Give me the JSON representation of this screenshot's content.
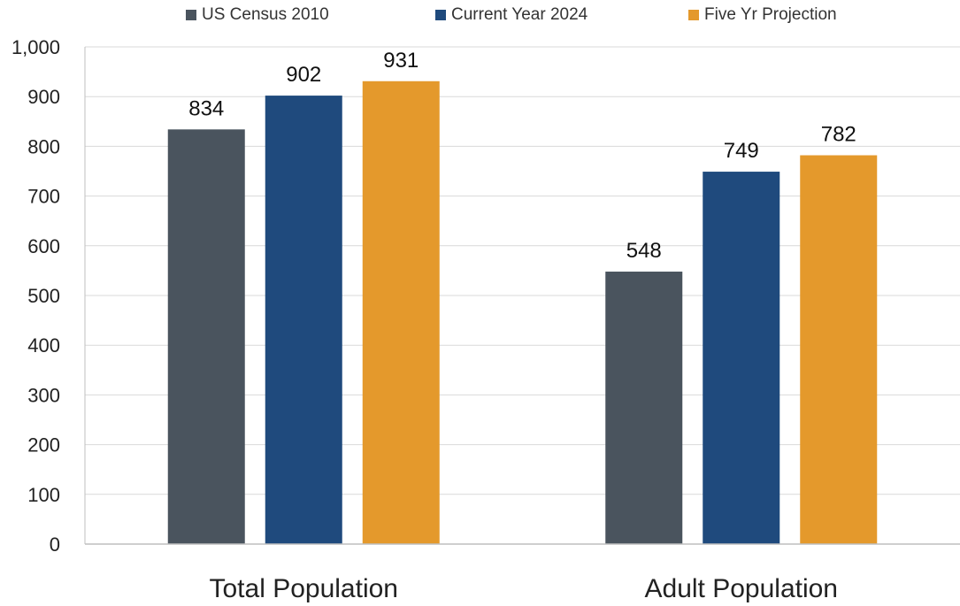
{
  "chart_data": {
    "type": "bar",
    "categories": [
      "Total Population",
      "Adult Population"
    ],
    "series": [
      {
        "name": "US Census 2010",
        "color": "#4a545e",
        "values": [
          834,
          548
        ]
      },
      {
        "name": "Current Year 2024",
        "color": "#1f4a7d",
        "values": [
          902,
          749
        ]
      },
      {
        "name": "Five Yr Projection",
        "color": "#e4992c",
        "values": [
          931,
          782
        ]
      }
    ],
    "yticks": [
      "0",
      "100",
      "200",
      "300",
      "400",
      "500",
      "600",
      "700",
      "800",
      "900",
      "1,000"
    ],
    "ylim": [
      0,
      1000
    ],
    "grid": true,
    "legend_position": "top",
    "title": "",
    "xlabel": "",
    "ylabel": ""
  }
}
